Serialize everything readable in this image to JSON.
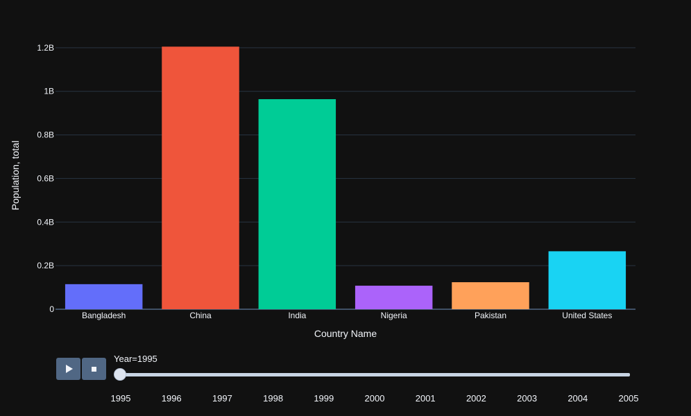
{
  "chart_data": {
    "type": "bar",
    "categories": [
      "Bangladesh",
      "China",
      "India",
      "Nigeria",
      "Pakistan",
      "United States"
    ],
    "values": [
      115000000,
      1205000000,
      964000000,
      108000000,
      124000000,
      266000000
    ],
    "colors": [
      "#636efa",
      "#EF553B",
      "#00cc96",
      "#ab63fa",
      "#FFA15A",
      "#19d3f3"
    ],
    "xlabel": "Country Name",
    "ylabel": "Population, total",
    "ylim": [
      0,
      1260000000
    ],
    "yticks": [
      0,
      200000000,
      400000000,
      600000000,
      800000000,
      1000000000,
      1200000000
    ],
    "ytick_labels": [
      "0",
      "0.2B",
      "0.4B",
      "0.6B",
      "0.8B",
      "1B",
      "1.2B"
    ],
    "grid": true,
    "background": "#111111",
    "grid_color": "#283442"
  },
  "animation": {
    "play_icon": "play-icon",
    "stop_icon": "stop-icon",
    "slider_prefix": "Year=",
    "current_value": "1995",
    "years": [
      "1995",
      "1996",
      "1997",
      "1998",
      "1999",
      "2000",
      "2001",
      "2002",
      "2003",
      "2004",
      "2005"
    ]
  }
}
